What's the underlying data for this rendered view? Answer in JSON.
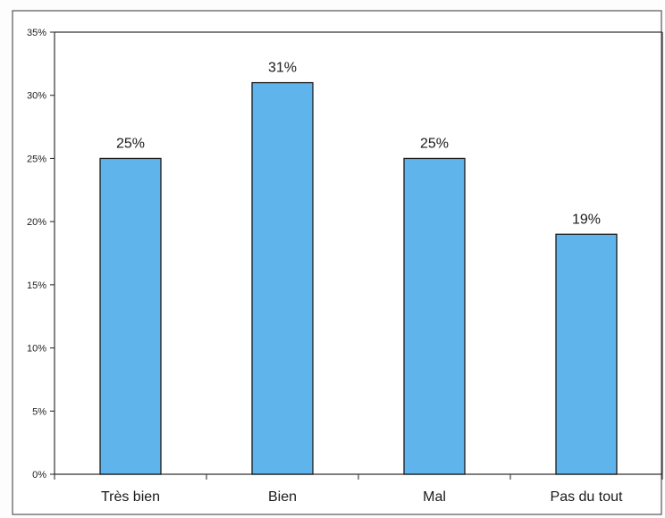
{
  "chart_data": {
    "type": "bar",
    "categories": [
      "Très bien",
      "Bien",
      "Mal",
      "Pas du tout"
    ],
    "values": [
      25,
      31,
      25,
      19
    ],
    "data_labels": [
      "25%",
      "31%",
      "25%",
      "19%"
    ],
    "title": "",
    "xlabel": "",
    "ylabel": "",
    "ylim": [
      0,
      35
    ],
    "y_ticks": [
      0,
      5,
      10,
      15,
      20,
      25,
      30,
      35
    ],
    "y_tick_labels": [
      "0%",
      "5%",
      "10%",
      "15%",
      "20%",
      "25%",
      "30%",
      "35%"
    ],
    "grid": false,
    "legend": "none",
    "colors": {
      "bar_fill": "#5fb4ec",
      "bar_stroke": "#1a1a1a",
      "axis": "#333333",
      "frame": "#555555"
    }
  }
}
